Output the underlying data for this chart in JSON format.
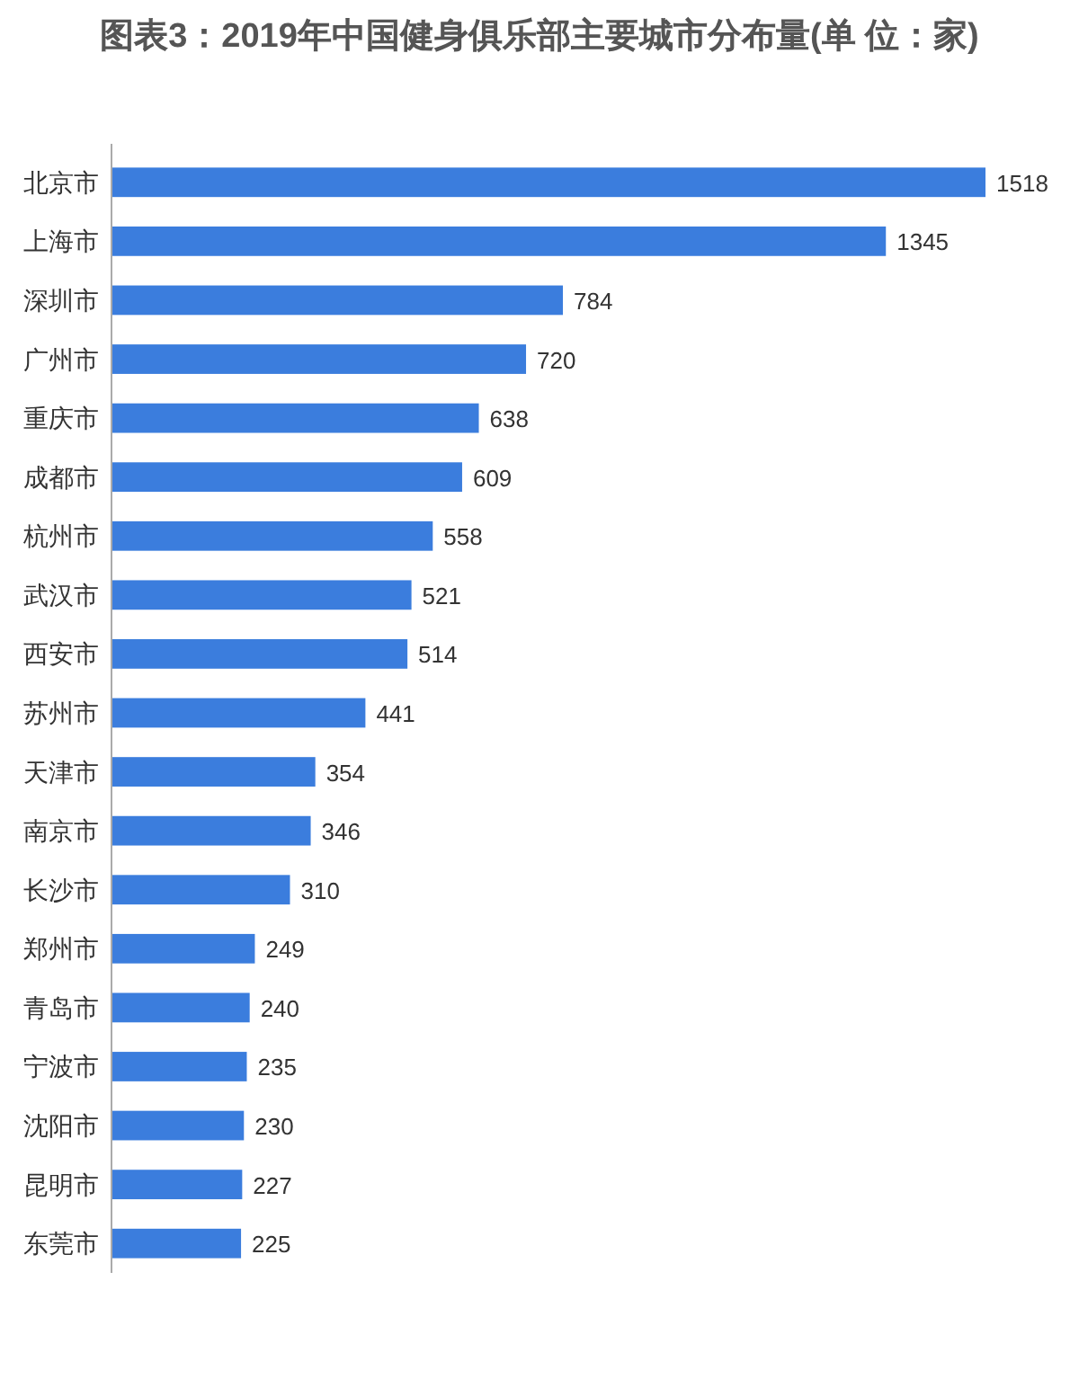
{
  "chart_data": {
    "type": "bar",
    "orientation": "horizontal",
    "title": "图表3：2019年中国健身俱乐部主要城市分布量(单 位：家)",
    "categories": [
      "北京市",
      "上海市",
      "深圳市",
      "广州市",
      "重庆市",
      "成都市",
      "杭州市",
      "武汉市",
      "西安市",
      "苏州市",
      "天津市",
      "南京市",
      "长沙市",
      "郑州市",
      "青岛市",
      "宁波市",
      "沈阳市",
      "昆明市",
      "东莞市"
    ],
    "values": [
      1518,
      1345,
      784,
      720,
      638,
      609,
      558,
      521,
      514,
      441,
      354,
      346,
      310,
      249,
      240,
      235,
      230,
      227,
      225
    ],
    "color": "#3b7ddd",
    "data_labels": true
  }
}
